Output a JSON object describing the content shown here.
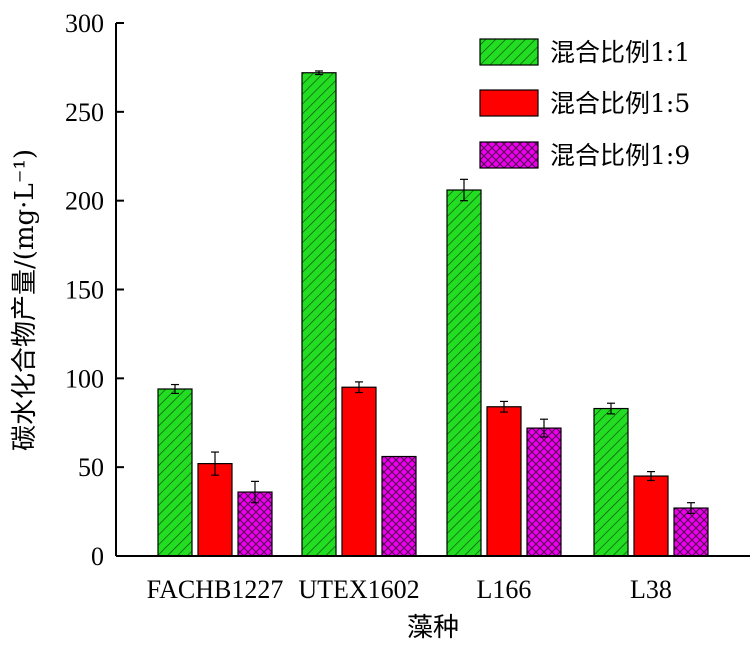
{
  "chart_data": {
    "type": "bar",
    "xlabel": "藻种",
    "ylabel": "碳水化合物产量/(mg·L⁻¹)",
    "ylim": [
      0,
      300
    ],
    "yticks": [
      0,
      50,
      100,
      150,
      200,
      250,
      300
    ],
    "categories": [
      "FACHB1227",
      "UTEX1602",
      "L166",
      "L38"
    ],
    "legend_position": "top-right",
    "grid": false,
    "series": [
      {
        "name": "混合比例1:1",
        "color": "#22dd22",
        "pattern": "diagonal-hatch",
        "values": [
          94,
          272,
          206,
          83
        ],
        "errors": [
          2.5,
          1,
          6,
          3
        ]
      },
      {
        "name": "混合比例1:5",
        "color": "#ff0000",
        "pattern": "solid",
        "values": [
          52,
          95,
          84,
          45
        ],
        "errors": [
          6.5,
          3,
          3,
          2.5
        ]
      },
      {
        "name": "混合比例1:9",
        "color": "#ee00ee",
        "pattern": "crosshatch",
        "values": [
          36,
          56,
          72,
          27
        ],
        "errors": [
          6,
          0,
          5,
          3
        ]
      }
    ]
  }
}
